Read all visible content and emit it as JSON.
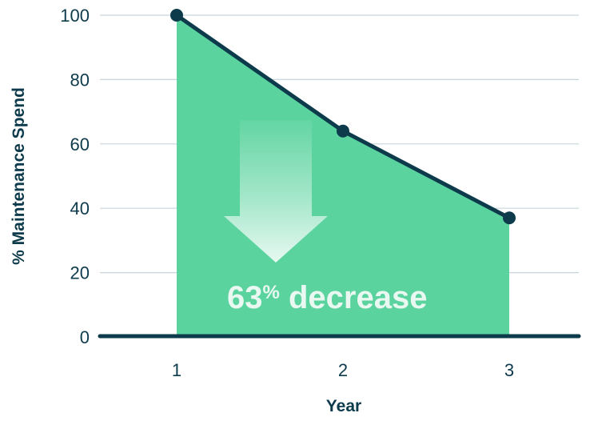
{
  "chart_data": {
    "type": "area",
    "x": [
      1,
      2,
      3
    ],
    "series": [
      {
        "values": [
          100,
          64,
          37
        ]
      }
    ],
    "xlabel": "Year",
    "ylabel": "% Maintenance Spend",
    "ylim": [
      0,
      100
    ],
    "y_ticks": [
      0,
      20,
      40,
      60,
      80,
      100
    ],
    "x_ticks": [
      1,
      2,
      3
    ],
    "grid": true,
    "annotation": {
      "number": "63",
      "percent": "%",
      "text": " decrease"
    },
    "colors": {
      "area": "#5bd39f",
      "line": "#0d3b4c",
      "grid": "#c7d6dd",
      "arrow": "#e9f8f1"
    }
  }
}
